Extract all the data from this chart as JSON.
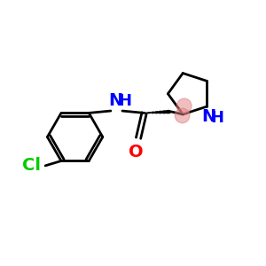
{
  "bg_color": "#ffffff",
  "bond_color": "#000000",
  "N_color": "#0000ff",
  "O_color": "#ff0000",
  "Cl_color": "#00cc00",
  "stereo_color": "#e08080",
  "line_width": 2.0,
  "font_size_atom": 14,
  "fig_size": [
    3.0,
    3.0
  ],
  "dpi": 100,
  "xlim": [
    0,
    10
  ],
  "ylim": [
    0,
    10
  ]
}
